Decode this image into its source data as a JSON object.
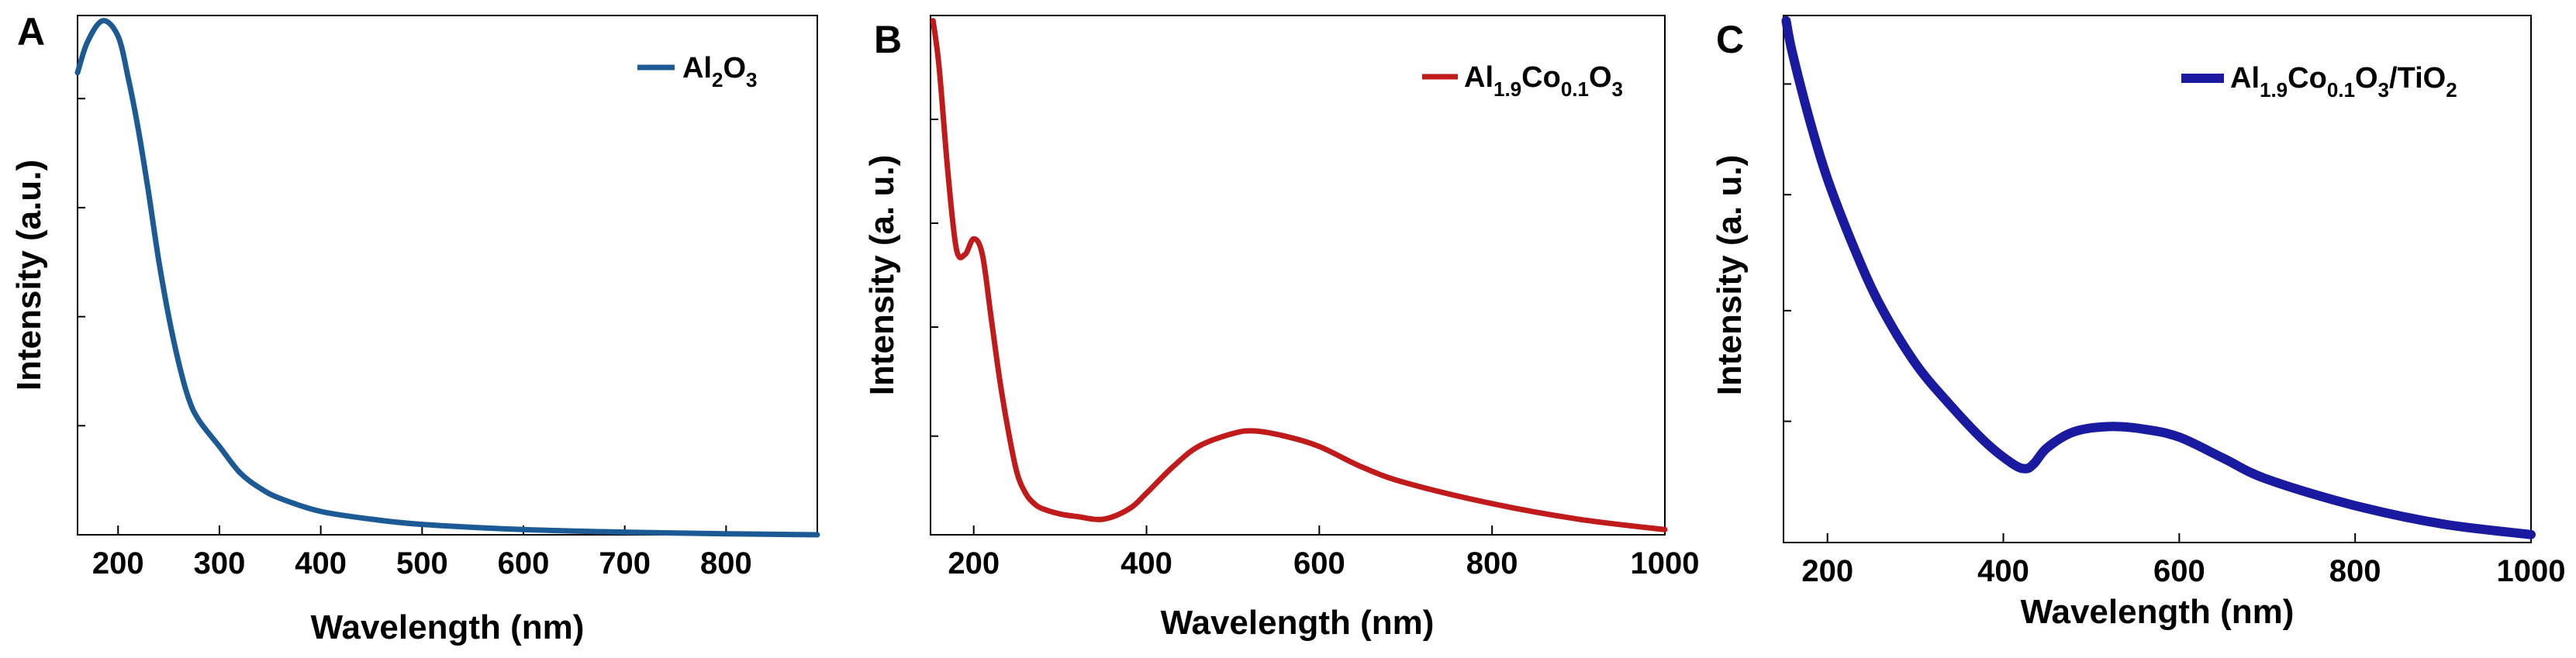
{
  "chart_data": [
    {
      "type": "line",
      "panel": "A",
      "xlabel": "Wavelength (nm)",
      "ylabel": "Intensity (a.u.)",
      "xlim": [
        160,
        890
      ],
      "ylim": [
        0,
        1
      ],
      "xticks": [
        200,
        300,
        400,
        500,
        600,
        700,
        800
      ],
      "yticks": [
        0.21,
        0.42,
        0.63,
        0.84
      ],
      "show_ytick_labels": false,
      "legend": {
        "text": "Al2O3",
        "parts": [
          {
            "t": "Al"
          },
          {
            "t": "2",
            "sub": true
          },
          {
            "t": "O"
          },
          {
            "t": "3",
            "sub": true
          }
        ]
      },
      "series": [
        {
          "name": "Al2O3",
          "color": "#1c5a96",
          "x": [
            160,
            170,
            185,
            200,
            210,
            220,
            230,
            240,
            250,
            260,
            270,
            280,
            300,
            320,
            340,
            360,
            400,
            450,
            500,
            600,
            700,
            800,
            890
          ],
          "y": [
            0.89,
            0.95,
            0.99,
            0.96,
            0.88,
            0.78,
            0.66,
            0.53,
            0.42,
            0.33,
            0.26,
            0.22,
            0.17,
            0.12,
            0.09,
            0.07,
            0.045,
            0.03,
            0.02,
            0.01,
            0.005,
            0.002,
            0.0
          ]
        }
      ]
    },
    {
      "type": "line",
      "panel": "B",
      "xlabel": "Wavelength (nm)",
      "ylabel": "Intensity (a. u.)",
      "xlim": [
        150,
        1000
      ],
      "ylim": [
        0,
        1
      ],
      "xticks": [
        200,
        400,
        600,
        800,
        1000
      ],
      "yticks": [
        0.19,
        0.4,
        0.6,
        0.8
      ],
      "show_ytick_labels": false,
      "legend": {
        "text": "Al1.9Co0.1O3",
        "parts": [
          {
            "t": "Al"
          },
          {
            "t": "1.9",
            "sub": true
          },
          {
            "t": "Co"
          },
          {
            "t": "0.1",
            "sub": true
          },
          {
            "t": "O"
          },
          {
            "t": "3",
            "sub": true
          }
        ]
      },
      "series": [
        {
          "name": "Al1.9Co0.1O3",
          "color": "#c01a1a",
          "x": [
            153,
            160,
            170,
            180,
            190,
            200,
            210,
            220,
            230,
            240,
            250,
            260,
            270,
            280,
            300,
            320,
            350,
            380,
            400,
            430,
            460,
            500,
            525,
            560,
            600,
            650,
            700,
            800,
            900,
            1000
          ],
          "y": [
            0.99,
            0.9,
            0.7,
            0.55,
            0.54,
            0.57,
            0.54,
            0.42,
            0.3,
            0.2,
            0.12,
            0.08,
            0.06,
            0.05,
            0.04,
            0.035,
            0.03,
            0.05,
            0.08,
            0.13,
            0.17,
            0.195,
            0.2,
            0.19,
            0.17,
            0.13,
            0.1,
            0.06,
            0.03,
            0.01
          ]
        }
      ]
    },
    {
      "type": "line",
      "panel": "C",
      "xlabel": "Wavelength (nm)",
      "ylabel": "Intensity (a. u.)",
      "xlim": [
        150,
        1000
      ],
      "ylim": [
        0,
        1
      ],
      "xticks": [
        200,
        400,
        600,
        800,
        1000
      ],
      "yticks": [
        0.23,
        0.44,
        0.66,
        0.87
      ],
      "show_ytick_labels": false,
      "legend": {
        "text": "Al1.9Co0.1O3/TiO2",
        "parts": [
          {
            "t": "Al"
          },
          {
            "t": "1.9",
            "sub": true
          },
          {
            "t": "Co"
          },
          {
            "t": "0.1",
            "sub": true
          },
          {
            "t": "O"
          },
          {
            "t": "3",
            "sub": true
          },
          {
            "t": "/TiO"
          },
          {
            "t": "2",
            "sub": true
          }
        ]
      },
      "series": [
        {
          "name": "Al1.9Co0.1O3/TiO2",
          "color": "#1a1aa0",
          "x": [
            153,
            160,
            180,
            200,
            230,
            260,
            300,
            340,
            380,
            410,
            425,
            435,
            450,
            480,
            520,
            560,
            600,
            650,
            700,
            800,
            900,
            1000
          ],
          "y": [
            0.99,
            0.93,
            0.8,
            0.69,
            0.56,
            0.45,
            0.34,
            0.26,
            0.19,
            0.15,
            0.14,
            0.15,
            0.18,
            0.21,
            0.22,
            0.215,
            0.2,
            0.16,
            0.12,
            0.07,
            0.035,
            0.015
          ]
        }
      ]
    }
  ]
}
